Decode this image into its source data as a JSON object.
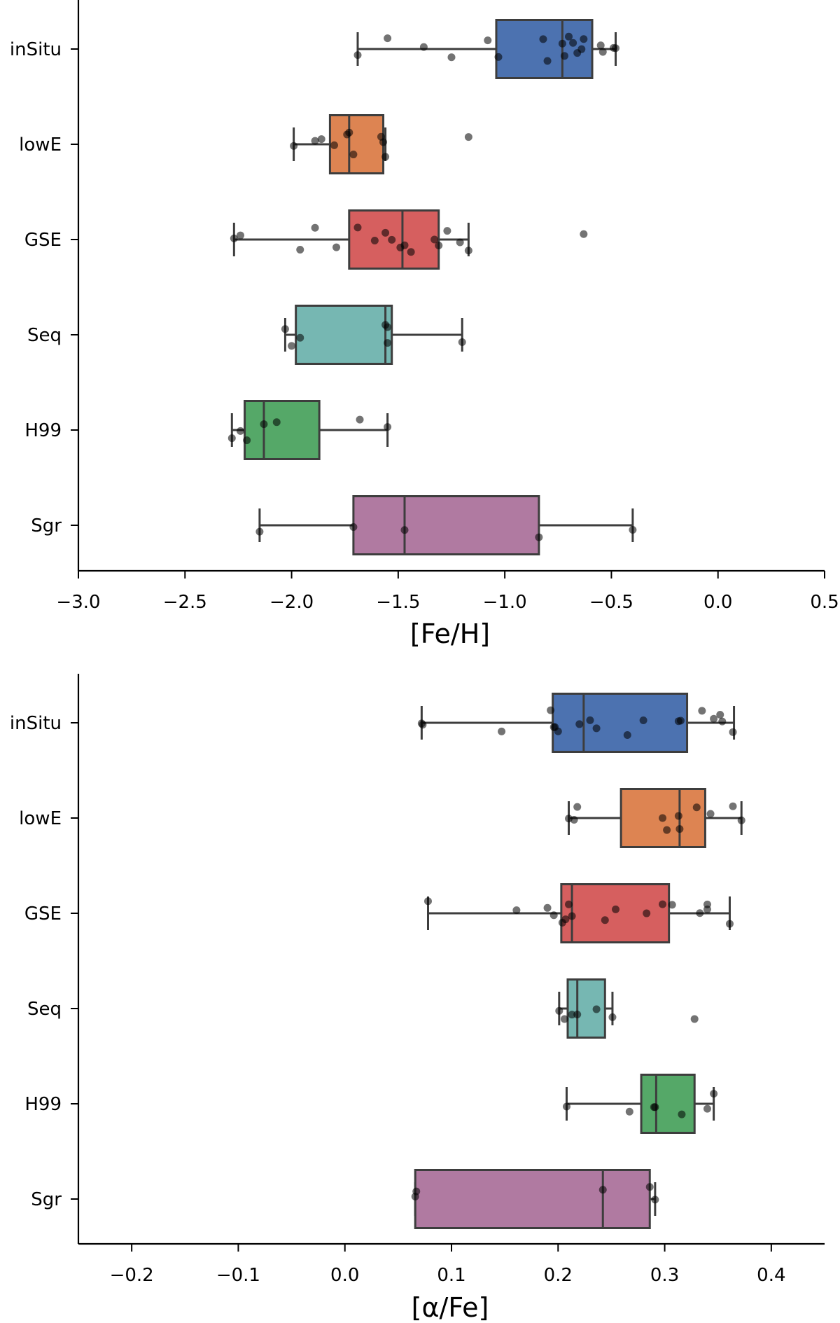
{
  "chart_data": [
    {
      "type": "box",
      "xlabel": "[Fe/H]",
      "ylabel": "",
      "xlim": [
        -3.0,
        0.5
      ],
      "xticks": [
        -3.0,
        -2.5,
        -2.0,
        -1.5,
        -1.0,
        -0.5,
        0.0,
        0.5
      ],
      "xtick_labels": [
        "−3.0",
        "−2.5",
        "−2.0",
        "−1.5",
        "−1.0",
        "−0.5",
        "0.0",
        "0.5"
      ],
      "categories": [
        "inSitu",
        "lowE",
        "GSE",
        "Seq",
        "H99",
        "Sgr"
      ],
      "colors": [
        "#4c72b0",
        "#dd8452",
        "#d65f5f",
        "#76b7b2",
        "#55a868",
        "#b07aa1"
      ],
      "series": [
        {
          "whisker_low": -1.69,
          "q1": -1.04,
          "median": -0.73,
          "q3": -0.59,
          "whisker_high": -0.48,
          "points": [
            -1.69,
            -1.55,
            -1.38,
            -1.25,
            -1.08,
            -1.03,
            -0.82,
            -0.8,
            -0.73,
            -0.72,
            -0.7,
            -0.68,
            -0.66,
            -0.64,
            -0.63,
            -0.55,
            -0.54,
            -0.49,
            -0.48
          ]
        },
        {
          "whisker_low": -1.99,
          "q1": -1.82,
          "median": -1.73,
          "q3": -1.57,
          "whisker_high": -1.56,
          "points": [
            -1.99,
            -1.89,
            -1.86,
            -1.8,
            -1.74,
            -1.73,
            -1.71,
            -1.58,
            -1.57,
            -1.56,
            -1.17
          ]
        },
        {
          "whisker_low": -2.27,
          "q1": -1.73,
          "median": -1.48,
          "q3": -1.31,
          "whisker_high": -1.17,
          "points": [
            -2.27,
            -2.24,
            -1.96,
            -1.89,
            -1.79,
            -1.69,
            -1.61,
            -1.56,
            -1.53,
            -1.49,
            -1.47,
            -1.44,
            -1.33,
            -1.31,
            -1.27,
            -1.21,
            -1.17,
            -0.63
          ]
        },
        {
          "whisker_low": -2.03,
          "q1": -1.98,
          "median": -1.56,
          "q3": -1.53,
          "whisker_high": -1.2,
          "points": [
            -2.03,
            -2.0,
            -1.96,
            -1.56,
            -1.55,
            -1.55,
            -1.2
          ]
        },
        {
          "whisker_low": -2.28,
          "q1": -2.22,
          "median": -2.13,
          "q3": -1.87,
          "whisker_high": -1.55,
          "points": [
            -2.28,
            -2.24,
            -2.21,
            -2.13,
            -2.07,
            -1.68,
            -1.55
          ]
        },
        {
          "whisker_low": -2.15,
          "q1": -1.71,
          "median": -1.47,
          "q3": -0.84,
          "whisker_high": -0.4,
          "points": [
            -2.15,
            -1.71,
            -1.47,
            -0.84,
            -0.4
          ]
        }
      ]
    },
    {
      "type": "box",
      "xlabel": "[α/Fe]",
      "ylabel": "",
      "xlim": [
        -0.25,
        0.45
      ],
      "xticks": [
        -0.2,
        -0.1,
        0.0,
        0.1,
        0.2,
        0.3,
        0.4
      ],
      "xtick_labels": [
        "−0.2",
        "−0.1",
        "0.0",
        "0.1",
        "0.2",
        "0.3",
        "0.4"
      ],
      "categories": [
        "inSitu",
        "lowE",
        "GSE",
        "Seq",
        "H99",
        "Sgr"
      ],
      "colors": [
        "#4c72b0",
        "#dd8452",
        "#d65f5f",
        "#76b7b2",
        "#55a868",
        "#b07aa1"
      ],
      "series": [
        {
          "whisker_low": 0.072,
          "q1": 0.195,
          "median": 0.224,
          "q3": 0.321,
          "whisker_high": 0.365,
          "points": [
            0.072,
            0.073,
            0.147,
            0.193,
            0.196,
            0.197,
            0.2,
            0.22,
            0.23,
            0.236,
            0.265,
            0.28,
            0.313,
            0.315,
            0.335,
            0.346,
            0.352,
            0.354,
            0.364
          ]
        },
        {
          "whisker_low": 0.21,
          "q1": 0.259,
          "median": 0.314,
          "q3": 0.338,
          "whisker_high": 0.372,
          "points": [
            0.21,
            0.215,
            0.218,
            0.298,
            0.302,
            0.313,
            0.314,
            0.33,
            0.343,
            0.364,
            0.372
          ]
        },
        {
          "whisker_low": 0.078,
          "q1": 0.203,
          "median": 0.213,
          "q3": 0.304,
          "whisker_high": 0.361,
          "points": [
            0.078,
            0.161,
            0.19,
            0.196,
            0.204,
            0.207,
            0.21,
            0.213,
            0.244,
            0.254,
            0.283,
            0.298,
            0.307,
            0.333,
            0.34,
            0.34,
            0.361
          ]
        },
        {
          "whisker_low": 0.201,
          "q1": 0.209,
          "median": 0.218,
          "q3": 0.244,
          "whisker_high": 0.251,
          "points": [
            0.201,
            0.206,
            0.213,
            0.218,
            0.236,
            0.251,
            0.328
          ]
        },
        {
          "whisker_low": 0.208,
          "q1": 0.278,
          "median": 0.292,
          "q3": 0.328,
          "whisker_high": 0.346,
          "points": [
            0.208,
            0.267,
            0.29,
            0.291,
            0.316,
            0.34,
            0.346
          ]
        },
        {
          "whisker_low": 0.066,
          "q1": 0.066,
          "median": 0.242,
          "q3": 0.286,
          "whisker_high": 0.291,
          "points": [
            0.066,
            0.067,
            0.242,
            0.286,
            0.291
          ]
        }
      ]
    }
  ]
}
